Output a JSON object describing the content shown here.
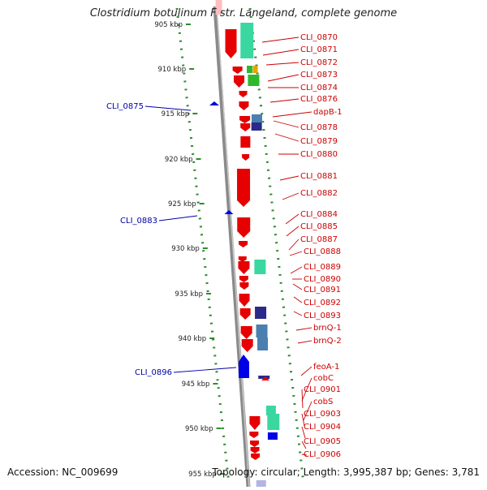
{
  "title": "Clostridium botulinum F str. Langeland, complete genome",
  "accession": "Accession: NC_009699",
  "stats": "Topology: circular; Length: 3,995,387 bp; Genes: 3,781",
  "colors": {
    "gene_label": "#cc0000",
    "reverse_label": "#0000a8",
    "forward_strand": "#e60000",
    "reverse_strand": "#0000e6",
    "teal": "#3ad7a0",
    "dark_blue": "#2a2a8a",
    "steel_blue": "#4a7fb0",
    "green": "#2eb82e",
    "orange": "#e8a000",
    "scale_dots": "#2e8b2e",
    "backbone": "#8a8a8a"
  },
  "scale_ticks": [
    "905 kbp",
    "910 kbp",
    "915 kbp",
    "920 kbp",
    "925 kbp",
    "930 kbp",
    "935 kbp",
    "940 kbp",
    "945 kbp",
    "950 kbp",
    "955 kbp"
  ],
  "right_labels": [
    "CLI_0870",
    "CLI_0871",
    "CLI_0872",
    "CLI_0873",
    "CLI_0874",
    "CLI_0876",
    "dapB-1",
    "CLI_0878",
    "CLI_0879",
    "CLI_0880",
    "CLI_0881",
    "CLI_0882",
    "CLI_0884",
    "CLI_0885",
    "CLI_0887",
    "CLI_0888",
    "CLI_0889",
    "CLI_0890",
    "CLI_0891",
    "CLI_0892",
    "CLI_0893",
    "brnQ-1",
    "brnQ-2",
    "feoA-1",
    "cobC",
    "CLI_0901",
    "cobS",
    "CLI_0903",
    "CLI_0904",
    "CLI_0905",
    "CLI_0906"
  ],
  "left_labels": [
    "CLI_0875",
    "CLI_0883",
    "CLI_0896"
  ]
}
